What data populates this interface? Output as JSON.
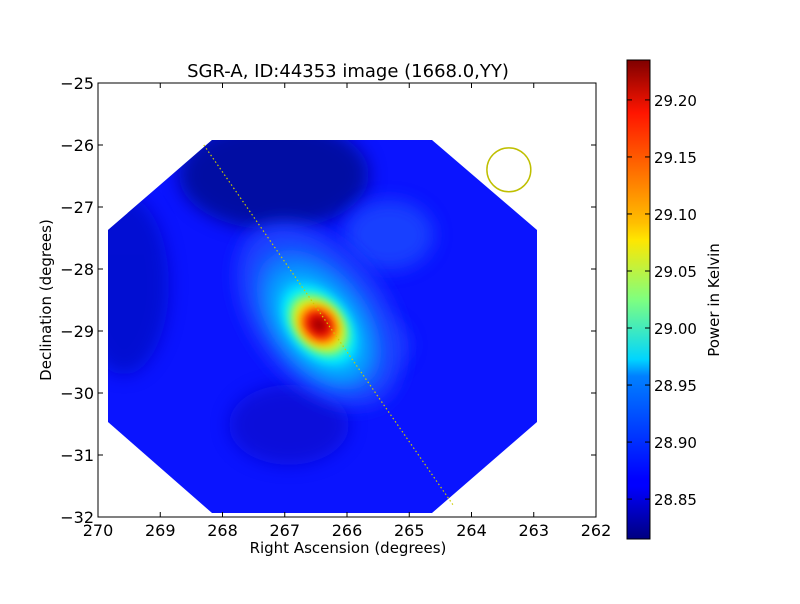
{
  "chart_data": {
    "type": "heatmap",
    "title": "SGR-A, ID:44353 image (1668.0,YY)",
    "xlabel": "Right Ascension (degrees)",
    "ylabel": "Declination (degrees)",
    "xlim": [
      270,
      262
    ],
    "ylim": [
      -32,
      -25
    ],
    "x_ticks": [
      "270",
      "269",
      "268",
      "267",
      "266",
      "265",
      "264",
      "263",
      "262"
    ],
    "y_ticks": [
      "−25",
      "−26",
      "−27",
      "−28",
      "−29",
      "−30",
      "−31",
      "−32"
    ],
    "colorbar": {
      "label": "Power in Kelvin",
      "range": [
        28.815,
        29.235
      ],
      "ticks": [
        "28.85",
        "28.90",
        "28.95",
        "29.00",
        "29.05",
        "29.10",
        "29.15",
        "29.20"
      ],
      "colormap": "jet"
    },
    "source_peak": {
      "ra": 266.45,
      "dec": -28.9,
      "value": 29.23
    },
    "image_footprint": "octagon",
    "scan_line": {
      "from": [
        268.3,
        -26.0
      ],
      "to": [
        264.3,
        -31.8
      ],
      "color": "#cccc00"
    },
    "beam_circle": {
      "center": [
        263.4,
        -26.4
      ],
      "radius_deg": 0.36,
      "color": "#bfbf00"
    },
    "grid": false,
    "background_level": 28.87
  }
}
